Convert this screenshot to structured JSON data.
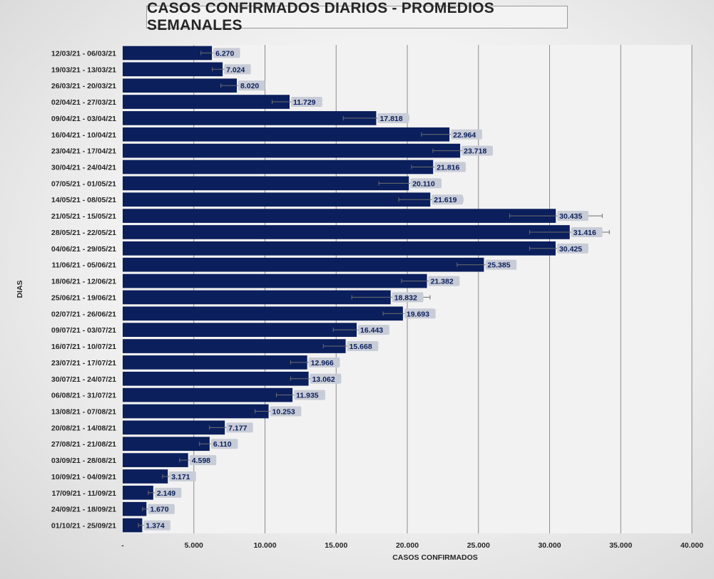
{
  "chart_data": {
    "type": "bar",
    "orientation": "horizontal",
    "title": "CASOS CONFIRMADOS DIARIOS - PROMEDIOS SEMANALES",
    "xlabel": "CASOS CONFIRMADOS",
    "ylabel": "DIAS",
    "xlim": [
      0,
      40000
    ],
    "x_ticks": [
      0,
      5000,
      10000,
      15000,
      20000,
      25000,
      30000,
      35000,
      40000
    ],
    "x_tick_labels": [
      "-",
      "5.000",
      "10.000",
      "15.000",
      "20.000",
      "25.000",
      "30.000",
      "35.000",
      "40.000"
    ],
    "grid": true,
    "colors": {
      "bar": "#0b1f5c",
      "label_bg": "#c8ccd6",
      "plot_bg": "#f2f2f2",
      "grid": "#8c8c8c"
    },
    "categories": [
      "12/03/21 - 06/03/21",
      "19/03/21 - 13/03/21",
      "26/03/21 - 20/03/21",
      "02/04/21 - 27/03/21",
      "09/04/21 - 03/04/21",
      "16/04/21 - 10/04/21",
      "23/04/21 - 17/04/21",
      "30/04/21 - 24/04/21",
      "07/05/21 - 01/05/21",
      "14/05/21 - 08/05/21",
      "21/05/21 - 15/05/21",
      "28/05/21 - 22/05/21",
      "04/06/21 - 29/05/21",
      "11/06/21 - 05/06/21",
      "18/06/21 - 12/06/21",
      "25/06/21 - 19/06/21",
      "02/07/21 - 26/06/21",
      "09/07/21 - 03/07/21",
      "16/07/21 - 10/07/21",
      "23/07/21 - 17/07/21",
      "30/07/21 - 24/07/21",
      "06/08/21 - 31/07/21",
      "13/08/21 - 07/08/21",
      "20/08/21 - 14/08/21",
      "27/08/21 - 21/08/21",
      "03/09/21 - 28/08/21",
      "10/09/21 - 04/09/21",
      "17/09/21 - 11/09/21",
      "24/09/21 - 18/09/21",
      "01/10/21 - 25/09/21"
    ],
    "values": [
      6270,
      7024,
      8020,
      11729,
      17818,
      22964,
      23718,
      21816,
      20110,
      21619,
      30435,
      31416,
      30425,
      25385,
      21382,
      18832,
      19693,
      16443,
      15668,
      12966,
      13062,
      11935,
      10253,
      7177,
      6110,
      4598,
      3171,
      2149,
      1670,
      1374
    ],
    "value_labels": [
      "6.270",
      "7.024",
      "8.020",
      "11.729",
      "17.818",
      "22.964",
      "23.718",
      "21.816",
      "20.110",
      "21.619",
      "30.435",
      "31.416",
      "30.425",
      "25.385",
      "21.382",
      "18.832",
      "19.693",
      "16.443",
      "15.668",
      "12.966",
      "13.062",
      "11.935",
      "10.253",
      "7.177",
      "6.110",
      "4.598",
      "3.171",
      "2.149",
      "1.670",
      "1.374"
    ],
    "error_bars": [
      [
        5500,
        6900
      ],
      [
        6300,
        7500
      ],
      [
        6900,
        8200
      ],
      [
        10500,
        12400
      ],
      [
        15500,
        20100
      ],
      [
        21000,
        23200
      ],
      [
        21800,
        24000
      ],
      [
        20300,
        22600
      ],
      [
        18000,
        20400
      ],
      [
        19400,
        23900
      ],
      [
        27200,
        33700
      ],
      [
        28600,
        34200
      ],
      [
        28600,
        31000
      ],
      [
        23500,
        25600
      ],
      [
        19600,
        22200
      ],
      [
        16100,
        21600
      ],
      [
        18300,
        19900
      ],
      [
        14800,
        16900
      ],
      [
        14100,
        16200
      ],
      [
        11800,
        13300
      ],
      [
        11800,
        13600
      ],
      [
        10800,
        12500
      ],
      [
        9300,
        10600
      ],
      [
        6100,
        7600
      ],
      [
        5400,
        6700
      ],
      [
        4000,
        5100
      ],
      [
        2800,
        3300
      ],
      [
        1800,
        2500
      ],
      [
        1400,
        1900
      ],
      [
        1100,
        1600
      ]
    ]
  }
}
